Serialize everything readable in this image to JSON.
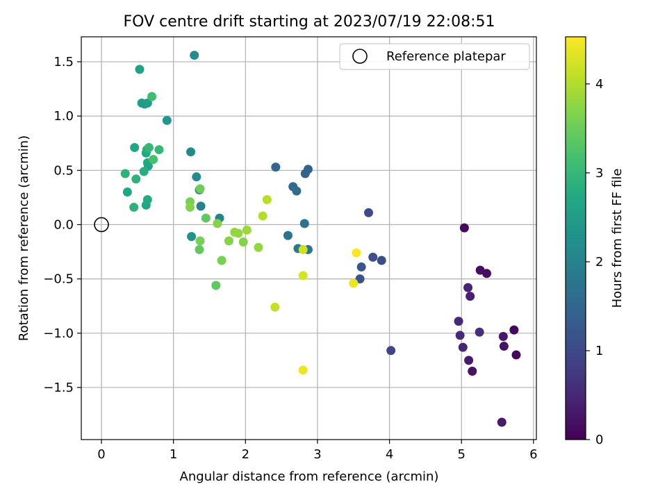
{
  "chart_data": {
    "type": "scatter",
    "title": "FOV centre drift starting at 2023/07/19 22:08:51",
    "xlabel": "Angular distance from reference (arcmin)",
    "ylabel": "Rotation from reference (arcmin)",
    "xlim": [
      -0.28,
      6.04
    ],
    "ylim": [
      -1.98,
      1.73
    ],
    "xticks": [
      0,
      1,
      2,
      3,
      4,
      5,
      6
    ],
    "yticks": [
      -1.5,
      -1.0,
      -0.5,
      0.0,
      0.5,
      1.0,
      1.5
    ],
    "xtick_labels": [
      "0",
      "1",
      "2",
      "3",
      "4",
      "5",
      "6"
    ],
    "ytick_labels": [
      "−1.5",
      "−1.0",
      "−0.5",
      "0.0",
      "0.5",
      "1.0",
      "1.5"
    ],
    "grid": true,
    "legend": {
      "position": "top-right",
      "entries": [
        "Reference platepar"
      ]
    },
    "reference_point": {
      "x": 0.0,
      "y": 0.0,
      "label": "Reference platepar"
    },
    "colorbar": {
      "label": "Hours from first FF file",
      "colormap": "viridis",
      "range": [
        0,
        4.53
      ],
      "ticks": [
        0,
        1,
        2,
        3,
        4
      ],
      "tick_labels": [
        "0",
        "1",
        "2",
        "3",
        "4"
      ]
    },
    "points": [
      {
        "x": 5.04,
        "y": -0.03,
        "c": 0.12
      },
      {
        "x": 5.26,
        "y": -0.42,
        "c": 0.18
      },
      {
        "x": 5.35,
        "y": -0.45,
        "c": 0.15
      },
      {
        "x": 5.09,
        "y": -0.58,
        "c": 0.45
      },
      {
        "x": 5.12,
        "y": -0.66,
        "c": 0.4
      },
      {
        "x": 4.96,
        "y": -0.89,
        "c": 0.5
      },
      {
        "x": 4.98,
        "y": -1.02,
        "c": 0.55
      },
      {
        "x": 5.02,
        "y": -1.13,
        "c": 0.48
      },
      {
        "x": 5.1,
        "y": -1.25,
        "c": 0.35
      },
      {
        "x": 5.15,
        "y": -1.35,
        "c": 0.22
      },
      {
        "x": 5.25,
        "y": -0.99,
        "c": 0.6
      },
      {
        "x": 5.58,
        "y": -1.03,
        "c": 0.3
      },
      {
        "x": 5.59,
        "y": -1.12,
        "c": 0.25
      },
      {
        "x": 5.73,
        "y": -0.97,
        "c": 0.1
      },
      {
        "x": 5.76,
        "y": -1.2,
        "c": 0.08
      },
      {
        "x": 5.56,
        "y": -1.82,
        "c": 0.32
      },
      {
        "x": 4.02,
        "y": -1.16,
        "c": 0.9
      },
      {
        "x": 3.71,
        "y": 0.11,
        "c": 1.0
      },
      {
        "x": 3.77,
        "y": -0.3,
        "c": 1.1
      },
      {
        "x": 3.89,
        "y": -0.33,
        "c": 1.05
      },
      {
        "x": 3.61,
        "y": -0.39,
        "c": 1.2
      },
      {
        "x": 3.59,
        "y": -0.5,
        "c": 1.15
      },
      {
        "x": 2.42,
        "y": 0.53,
        "c": 1.5
      },
      {
        "x": 2.66,
        "y": 0.35,
        "c": 1.55
      },
      {
        "x": 2.71,
        "y": 0.31,
        "c": 1.6
      },
      {
        "x": 2.83,
        "y": 0.47,
        "c": 1.45
      },
      {
        "x": 2.87,
        "y": 0.51,
        "c": 1.4
      },
      {
        "x": 2.82,
        "y": 0.01,
        "c": 1.7
      },
      {
        "x": 2.59,
        "y": -0.1,
        "c": 1.7
      },
      {
        "x": 2.73,
        "y": -0.22,
        "c": 1.8
      },
      {
        "x": 2.87,
        "y": -0.23,
        "c": 1.75
      },
      {
        "x": 1.29,
        "y": 1.56,
        "c": 2.2
      },
      {
        "x": 1.24,
        "y": 0.67,
        "c": 2.1
      },
      {
        "x": 1.32,
        "y": 0.44,
        "c": 2.15
      },
      {
        "x": 1.36,
        "y": 0.32,
        "c": 2.05
      },
      {
        "x": 1.38,
        "y": 0.17,
        "c": 2.0
      },
      {
        "x": 1.64,
        "y": 0.06,
        "c": 2.0
      },
      {
        "x": 1.25,
        "y": -0.11,
        "c": 2.3
      },
      {
        "x": 0.91,
        "y": 0.96,
        "c": 2.4
      },
      {
        "x": 0.53,
        "y": 1.43,
        "c": 2.6
      },
      {
        "x": 0.56,
        "y": 1.12,
        "c": 2.5
      },
      {
        "x": 0.6,
        "y": 1.11,
        "c": 2.45
      },
      {
        "x": 0.64,
        "y": 1.12,
        "c": 2.55
      },
      {
        "x": 0.7,
        "y": 1.18,
        "c": 3.1
      },
      {
        "x": 0.46,
        "y": 0.71,
        "c": 2.7
      },
      {
        "x": 0.62,
        "y": 0.66,
        "c": 2.7
      },
      {
        "x": 0.63,
        "y": 0.69,
        "c": 2.8
      },
      {
        "x": 0.66,
        "y": 0.71,
        "c": 3.0
      },
      {
        "x": 0.8,
        "y": 0.69,
        "c": 3.0
      },
      {
        "x": 0.64,
        "y": 0.57,
        "c": 2.75
      },
      {
        "x": 0.65,
        "y": 0.54,
        "c": 2.65
      },
      {
        "x": 0.72,
        "y": 0.6,
        "c": 3.2
      },
      {
        "x": 0.59,
        "y": 0.49,
        "c": 2.8
      },
      {
        "x": 0.33,
        "y": 0.47,
        "c": 2.9
      },
      {
        "x": 0.48,
        "y": 0.42,
        "c": 2.9
      },
      {
        "x": 0.36,
        "y": 0.3,
        "c": 2.7
      },
      {
        "x": 0.45,
        "y": 0.16,
        "c": 2.9
      },
      {
        "x": 0.62,
        "y": 0.18,
        "c": 2.7
      },
      {
        "x": 0.64,
        "y": 0.23,
        "c": 2.75
      },
      {
        "x": 1.37,
        "y": 0.33,
        "c": 3.5
      },
      {
        "x": 1.23,
        "y": 0.21,
        "c": 3.6
      },
      {
        "x": 1.23,
        "y": 0.16,
        "c": 3.7
      },
      {
        "x": 1.45,
        "y": 0.06,
        "c": 3.4
      },
      {
        "x": 1.61,
        "y": 0.01,
        "c": 3.7
      },
      {
        "x": 1.37,
        "y": -0.15,
        "c": 3.6
      },
      {
        "x": 1.36,
        "y": -0.23,
        "c": 3.4
      },
      {
        "x": 1.59,
        "y": -0.56,
        "c": 3.4
      },
      {
        "x": 1.67,
        "y": -0.33,
        "c": 3.6
      },
      {
        "x": 1.77,
        "y": -0.15,
        "c": 3.7
      },
      {
        "x": 1.85,
        "y": -0.07,
        "c": 3.8
      },
      {
        "x": 1.9,
        "y": -0.08,
        "c": 3.8
      },
      {
        "x": 1.97,
        "y": -0.16,
        "c": 3.7
      },
      {
        "x": 2.02,
        "y": -0.05,
        "c": 3.85
      },
      {
        "x": 2.18,
        "y": -0.21,
        "c": 3.8
      },
      {
        "x": 2.24,
        "y": 0.08,
        "c": 4.0
      },
      {
        "x": 2.3,
        "y": 0.23,
        "c": 4.05
      },
      {
        "x": 2.41,
        "y": -0.76,
        "c": 4.15
      },
      {
        "x": 2.8,
        "y": -0.23,
        "c": 4.2
      },
      {
        "x": 2.8,
        "y": -0.47,
        "c": 4.25
      },
      {
        "x": 2.8,
        "y": -1.34,
        "c": 4.4
      },
      {
        "x": 3.5,
        "y": -0.54,
        "c": 4.4
      },
      {
        "x": 3.54,
        "y": -0.26,
        "c": 4.5
      }
    ]
  }
}
